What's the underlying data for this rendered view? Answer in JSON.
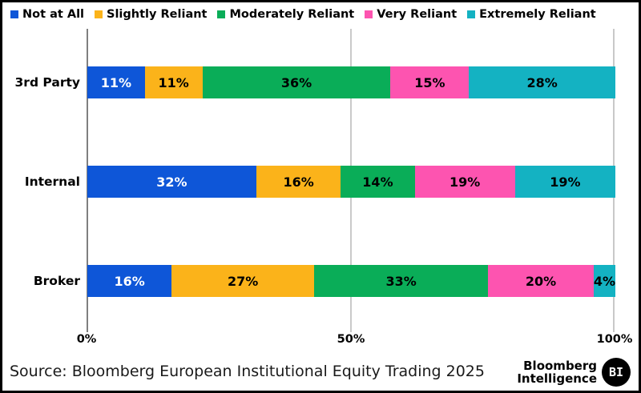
{
  "chart_data": {
    "type": "bar",
    "orientation": "horizontal-stacked",
    "title": "",
    "categories": [
      "3rd Party",
      "Internal",
      "Broker"
    ],
    "series": [
      {
        "name": "Not at All",
        "color": "#0E56D8",
        "text_color": "#ffffff",
        "values": [
          11,
          32,
          16
        ]
      },
      {
        "name": "Slightly Reliant",
        "color": "#FBB31A",
        "text_color": "#000000",
        "values": [
          11,
          16,
          27
        ]
      },
      {
        "name": "Moderately Reliant",
        "color": "#0AAD58",
        "text_color": "#000000",
        "values": [
          36,
          14,
          33
        ]
      },
      {
        "name": "Very Reliant",
        "color": "#FD54B0",
        "text_color": "#000000",
        "values": [
          15,
          19,
          20
        ]
      },
      {
        "name": "Extremely Reliant",
        "color": "#14B2C2",
        "text_color": "#000000",
        "values": [
          28,
          19,
          4
        ]
      }
    ],
    "value_suffix": "%",
    "x_ticks": [
      "0%",
      "50%",
      "100%"
    ],
    "xlim": [
      0,
      100
    ],
    "grid": "vertical",
    "legend_position": "top"
  },
  "footer": {
    "source": "Source: Bloomberg European Institutional Equity Trading 2025",
    "logo_line1": "Bloomberg",
    "logo_line2": "Intelligence",
    "logo_badge": "BI"
  }
}
